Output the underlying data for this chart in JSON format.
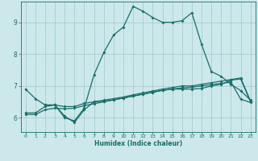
{
  "title": "",
  "xlabel": "Humidex (Indice chaleur)",
  "background_color": "#cce8eb",
  "grid_color": "#a0c8cc",
  "line_color": "#1a6e6a",
  "xlim": [
    -0.5,
    23.5
  ],
  "ylim": [
    5.55,
    9.65
  ],
  "xticks": [
    0,
    1,
    2,
    3,
    4,
    5,
    6,
    7,
    8,
    9,
    10,
    11,
    12,
    13,
    14,
    15,
    16,
    17,
    18,
    19,
    20,
    21,
    22,
    23
  ],
  "yticks": [
    6,
    7,
    8,
    9
  ],
  "line1_x": [
    0,
    1,
    2,
    3,
    4,
    5,
    6,
    7,
    8,
    9,
    10,
    11,
    12,
    13,
    14,
    15,
    16,
    17,
    18,
    19,
    20,
    21,
    22,
    23
  ],
  "line1_y": [
    6.9,
    6.6,
    6.4,
    6.4,
    6.0,
    5.9,
    6.3,
    7.35,
    8.05,
    8.6,
    8.85,
    9.5,
    9.35,
    9.15,
    9.0,
    9.0,
    9.05,
    9.3,
    8.3,
    7.45,
    7.3,
    7.05,
    6.85,
    6.55
  ],
  "line2_x": [
    0,
    1,
    2,
    3,
    4,
    5,
    6,
    7,
    8,
    9,
    10,
    11,
    12,
    13,
    14,
    15,
    16,
    17,
    18,
    19,
    20,
    21,
    22,
    23
  ],
  "line2_y": [
    6.15,
    6.15,
    6.35,
    6.4,
    6.35,
    6.35,
    6.45,
    6.5,
    6.55,
    6.6,
    6.65,
    6.72,
    6.78,
    6.84,
    6.9,
    6.95,
    7.0,
    7.0,
    7.05,
    7.1,
    7.15,
    7.2,
    7.25,
    6.52
  ],
  "line3_x": [
    0,
    1,
    2,
    3,
    4,
    5,
    6,
    7,
    8,
    9,
    10,
    11,
    12,
    13,
    14,
    15,
    16,
    17,
    18,
    19,
    20,
    21,
    22,
    23
  ],
  "line3_y": [
    6.1,
    6.1,
    6.25,
    6.3,
    6.28,
    6.3,
    6.38,
    6.44,
    6.5,
    6.56,
    6.62,
    6.68,
    6.74,
    6.8,
    6.86,
    6.9,
    6.94,
    6.96,
    7.0,
    7.04,
    7.08,
    7.12,
    6.58,
    6.48
  ],
  "line4_x": [
    2,
    3,
    4,
    5,
    6,
    7,
    8,
    9,
    10,
    11,
    12,
    13,
    14,
    15,
    16,
    17,
    18,
    19,
    20,
    21,
    22,
    23
  ],
  "line4_y": [
    6.4,
    6.4,
    6.05,
    5.85,
    6.25,
    6.5,
    6.52,
    6.56,
    6.62,
    6.68,
    6.74,
    6.8,
    6.86,
    6.9,
    6.9,
    6.9,
    6.92,
    7.0,
    7.05,
    7.18,
    7.22,
    6.5
  ]
}
